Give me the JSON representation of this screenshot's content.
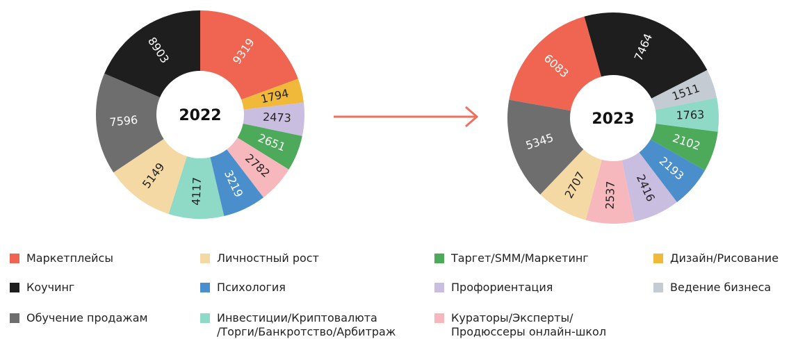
{
  "chart_data": [
    {
      "type": "pie",
      "title": "2022",
      "values": [
        9319,
        1794,
        2473,
        2651,
        2782,
        3219,
        4117,
        5149,
        7596,
        8903
      ],
      "colors": [
        "#f06552",
        "#f0b93a",
        "#c9bde0",
        "#4caa5a",
        "#f7b8bd",
        "#4a8fcb",
        "#8fd9c7",
        "#f5d9a4",
        "#6e6e6e",
        "#1e1e1e"
      ]
    },
    {
      "type": "pie",
      "title": "2023",
      "values": [
        6083,
        7464,
        1511,
        1763,
        2102,
        2193,
        2416,
        2537,
        2707,
        5345
      ],
      "colors": [
        "#f06552",
        "#1e1e1e",
        "#c5cbd3",
        "#8fd9c7",
        "#4caa5a",
        "#4a8fcb",
        "#c9bde0",
        "#f7b8bd",
        "#f5d9a4",
        "#6e6e6e"
      ]
    }
  ],
  "legend": [
    {
      "name": "Маркетплейсы",
      "color": "#f06552"
    },
    {
      "name": "Коучинг",
      "color": "#1e1e1e"
    },
    {
      "name": "Обучение продажам",
      "color": "#6e6e6e"
    },
    {
      "name": "Личностный рост",
      "color": "#f5d9a4"
    },
    {
      "name": "Психология",
      "color": "#4a8fcb"
    },
    {
      "name": "Инвестиции/Криптовалюта\n/Торги/Банкротство/Арбитраж",
      "color": "#8fd9c7"
    },
    {
      "name": "Таргет/SMM/Маркетинг",
      "color": "#4caa5a"
    },
    {
      "name": "Профориентация",
      "color": "#c9bde0"
    },
    {
      "name": "Кураторы/Эксперты/\nПродюссеры онлайн-школ",
      "color": "#f7b8bd"
    },
    {
      "name": "Дизайн/Рисование",
      "color": "#f0b93a"
    },
    {
      "name": "Ведение бизнеса",
      "color": "#c5cbd3"
    }
  ]
}
